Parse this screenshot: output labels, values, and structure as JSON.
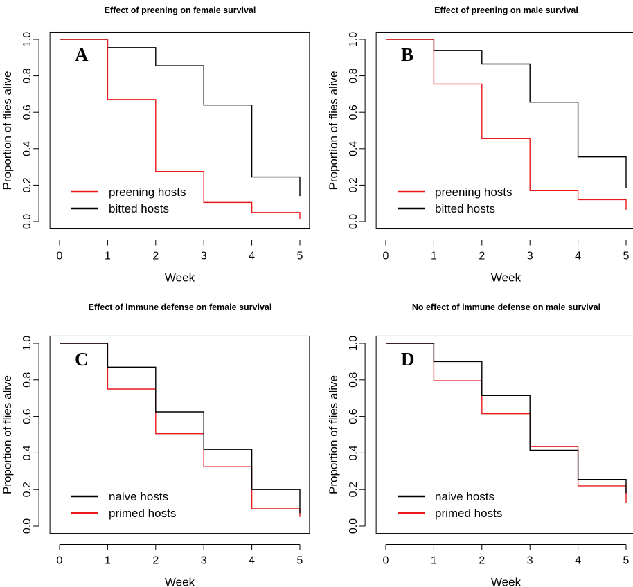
{
  "colors": {
    "black": "#000000",
    "red": "#e8191b"
  },
  "chart_data": [
    {
      "type": "line",
      "step": true,
      "panel": "A",
      "title": "Effect of preening on female survival",
      "xlabel": "Week",
      "ylabel": "Proportion of flies alive",
      "xlim": [
        0,
        5
      ],
      "ylim": [
        0,
        1
      ],
      "xticks": [
        "0",
        "1",
        "2",
        "3",
        "4",
        "5"
      ],
      "yticks": [
        "0.0",
        "0.2",
        "0.4",
        "0.6",
        "0.8",
        "1.0"
      ],
      "legend_position": "bottom-left",
      "x": [
        0,
        1,
        2,
        3,
        4,
        5
      ],
      "series": [
        {
          "name": "preening hosts",
          "color": "#e8191b",
          "values": [
            1.0,
            0.67,
            0.275,
            0.105,
            0.05,
            0.015
          ]
        },
        {
          "name": "bitted hosts",
          "color": "#000000",
          "values": [
            1.0,
            0.955,
            0.855,
            0.64,
            0.245,
            0.14
          ]
        }
      ]
    },
    {
      "type": "line",
      "step": true,
      "panel": "B",
      "title": "Effect of preening on male survival",
      "xlabel": "Week",
      "ylabel": "Proportion of flies alive",
      "xlim": [
        0,
        5
      ],
      "ylim": [
        0,
        1
      ],
      "xticks": [
        "0",
        "1",
        "2",
        "3",
        "4",
        "5"
      ],
      "yticks": [
        "0.0",
        "0.2",
        "0.4",
        "0.6",
        "0.8",
        "1.0"
      ],
      "legend_position": "bottom-left",
      "x": [
        0,
        1,
        2,
        3,
        4,
        5
      ],
      "series": [
        {
          "name": "preening hosts",
          "color": "#e8191b",
          "values": [
            1.0,
            0.755,
            0.455,
            0.17,
            0.12,
            0.065
          ]
        },
        {
          "name": "bitted hosts",
          "color": "#000000",
          "values": [
            1.0,
            0.94,
            0.865,
            0.655,
            0.355,
            0.185
          ]
        }
      ]
    },
    {
      "type": "line",
      "step": true,
      "panel": "C",
      "title": "Effect of immune defense on female survival",
      "xlabel": "Week",
      "ylabel": "Proportion of flies alive",
      "xlim": [
        0,
        5
      ],
      "ylim": [
        0,
        1
      ],
      "xticks": [
        "0",
        "1",
        "2",
        "3",
        "4",
        "5"
      ],
      "yticks": [
        "0.0",
        "0.2",
        "0.4",
        "0.6",
        "0.8",
        "1.0"
      ],
      "legend_position": "bottom-left",
      "x": [
        0,
        1,
        2,
        3,
        4,
        5
      ],
      "series": [
        {
          "name": "naive hosts",
          "color": "#000000",
          "values": [
            1.0,
            0.87,
            0.625,
            0.42,
            0.2,
            0.07
          ]
        },
        {
          "name": "primed hosts",
          "color": "#e8191b",
          "values": [
            1.0,
            0.75,
            0.505,
            0.325,
            0.095,
            0.05
          ]
        }
      ]
    },
    {
      "type": "line",
      "step": true,
      "panel": "D",
      "title": "No effect of immune defense on male survival",
      "xlabel": "Week",
      "ylabel": "Proportion of flies alive",
      "xlim": [
        0,
        5
      ],
      "ylim": [
        0,
        1
      ],
      "xticks": [
        "0",
        "1",
        "2",
        "3",
        "4",
        "5"
      ],
      "yticks": [
        "0.0",
        "0.2",
        "0.4",
        "0.6",
        "0.8",
        "1.0"
      ],
      "legend_position": "bottom-left",
      "x": [
        0,
        1,
        2,
        3,
        4,
        5
      ],
      "series": [
        {
          "name": "naive hosts",
          "color": "#000000",
          "values": [
            1.0,
            0.9,
            0.715,
            0.415,
            0.255,
            0.18
          ]
        },
        {
          "name": "primed hosts",
          "color": "#e8191b",
          "values": [
            1.0,
            0.795,
            0.615,
            0.435,
            0.22,
            0.125
          ]
        }
      ]
    }
  ]
}
